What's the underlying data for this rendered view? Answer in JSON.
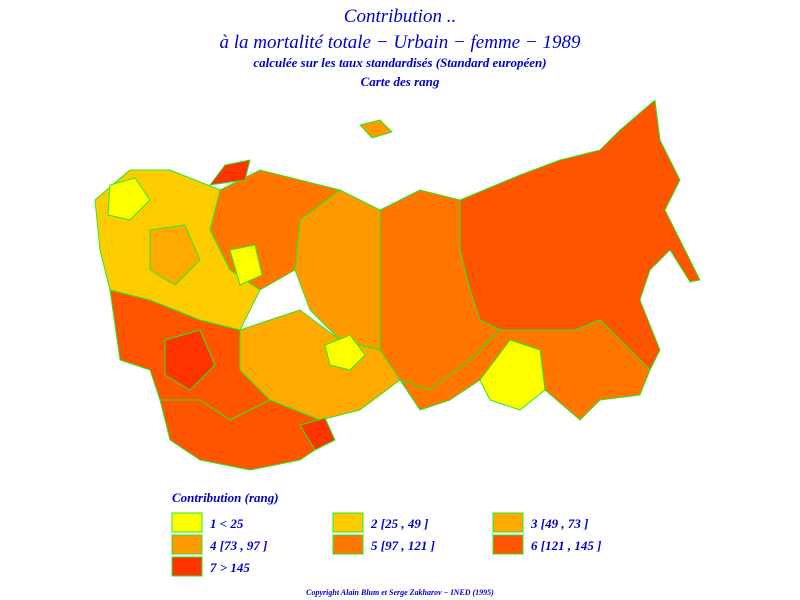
{
  "header": {
    "title": "Contribution ..",
    "subtitle": "à la mortalité totale − Urbain − femme − 1989",
    "note": "calculée sur les taux standardisés (Standard européen)",
    "map_kind": "Carte des rang"
  },
  "legend": {
    "title": "Contribution (rang)",
    "items": [
      {
        "label": "1  <  25",
        "color": "#ffff00"
      },
      {
        "label": "2 [25 , 49 ]",
        "color": "#ffcc00"
      },
      {
        "label": "3 [49 , 73 ]",
        "color": "#ffaa00"
      },
      {
        "label": "4 [73 , 97 ]",
        "color": "#ff9900"
      },
      {
        "label": "5 [97 , 121 ]",
        "color": "#ff7700"
      },
      {
        "label": "6 [121 , 145 ]",
        "color": "#ff5500"
      },
      {
        "label": "7  >  145",
        "color": "#ff3300"
      }
    ]
  },
  "footer": {
    "copyright": "Copyright Alain Blum et Serge Zakharov − INED (1995)"
  }
}
